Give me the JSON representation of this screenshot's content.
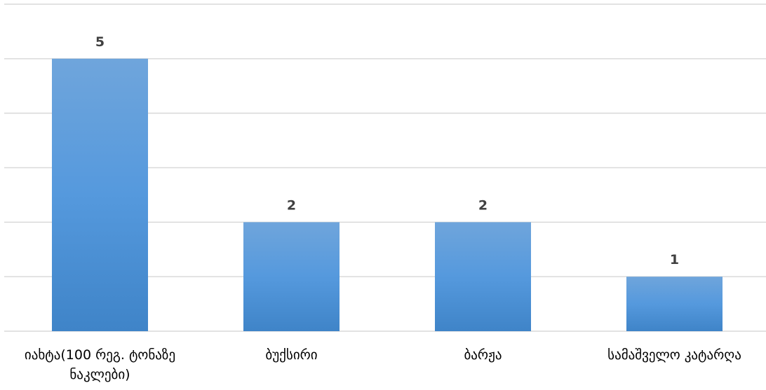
{
  "chart_data": {
    "type": "bar",
    "title": "",
    "xlabel": "",
    "ylabel": "",
    "categories": [
      "იახტა(100 რეგ. ტონაზე ნაკლები)",
      "ბუქსირი",
      "ბარჟა",
      "სამაშველო კატარღა"
    ],
    "category_lines": [
      [
        "იახტა(100 რეგ. ტონაზე",
        "ნაკლები)"
      ],
      [
        "ბუქსირი"
      ],
      [
        "ბარჟა"
      ],
      [
        "სამაშველო კატარღა"
      ]
    ],
    "values": [
      5,
      2,
      2,
      1
    ],
    "data_labels": [
      "5",
      "2",
      "2",
      "1"
    ],
    "ylim": [
      0,
      6
    ],
    "grid": true,
    "legend": "none",
    "colors": {
      "bar_top": "#6fa5dc",
      "bar_mid": "#5599dd",
      "bar_bottom": "#3f84c8",
      "grid": "#d9d9d9"
    }
  }
}
